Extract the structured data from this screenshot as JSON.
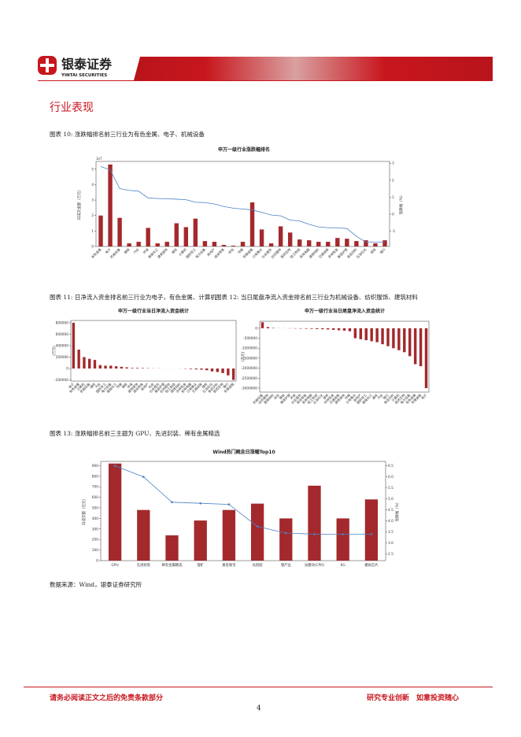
{
  "header": {
    "brand": "银泰证券",
    "brand_en": "YINTAI SECURITIES"
  },
  "section_title": "行业表现",
  "captions": [
    "图表 10: 涨跌幅排名前三行业为有色金属、电子、机械设备",
    "图表 11: 日净流入资金排名前三行业为电子，有色金属、计算机",
    "图表 12: 当日尾盘净流入资金排名前三行业为机械设备、纺织服饰、建筑材料",
    "图表 13: 涨跌幅排名前三主题为 GPU、先进封装、稀有金属精选"
  ],
  "source": "数据来源：Wind，银泰证券研究所",
  "footer": {
    "left": "请务必阅读正文之后的免责条款部分",
    "right": "研究专业创新　如意投资随心",
    "page": "4"
  },
  "chart_data": [
    {
      "type": "combo",
      "title": "申万一级行业涨跌幅排名",
      "ylabel": "日成交金额（万元）",
      "y2label": "涨跌幅（%）",
      "y_offset_label": "1e7",
      "categories": [
        "有色金属",
        "电子",
        "机械设备",
        "钢铁",
        "汽车",
        "环保",
        "基础化工",
        "建筑装饰",
        "通信",
        "计算机",
        "国防军工",
        "电力设备",
        "房地产",
        "商贸零售",
        "综合",
        "传媒",
        "非银金融",
        "公用事业",
        "社会服务",
        "纺织服饰",
        "医药生物",
        "轻工制造",
        "家用电器",
        "建筑材料",
        "交通运输",
        "农林牧渔",
        "美容护理",
        "食品饮料",
        "石油石化",
        "煤炭",
        "银行"
      ],
      "series": [
        {
          "name": "成交额",
          "type": "bar",
          "color": "#a3292c",
          "values": [
            2.0,
            5.3,
            1.85,
            0.2,
            0.3,
            1.2,
            0.2,
            0.3,
            1.5,
            1.25,
            1.8,
            0.35,
            0.3,
            0.1,
            0.05,
            0.3,
            2.85,
            1.1,
            0.2,
            1.3,
            0.9,
            0.45,
            0.4,
            0.3,
            0.3,
            0.55,
            0.5,
            0.35,
            0.4,
            0.2,
            0.4
          ]
        },
        {
          "name": "涨跌幅",
          "type": "line",
          "axis": "y2",
          "color": "#4a80c4",
          "values": [
            2.8,
            2.6,
            1.5,
            1.4,
            1.35,
            0.95,
            0.92,
            0.9,
            0.88,
            0.85,
            0.7,
            0.68,
            0.6,
            0.45,
            0.35,
            0.3,
            0.25,
            0.1,
            -0.05,
            -0.1,
            -0.35,
            -0.4,
            -0.6,
            -0.75,
            -0.8,
            -0.8,
            -0.85,
            -1.3,
            -1.65,
            -1.65,
            -1.65
          ]
        }
      ],
      "ylim": [
        0,
        5.5
      ],
      "yticks": [
        0,
        1,
        2,
        3,
        4,
        5
      ],
      "y2lim": [
        -1.9,
        3.1
      ],
      "y2ticks": [
        -1,
        0,
        1,
        2,
        3
      ]
    },
    {
      "type": "bar",
      "title": "申万一级行业当日净流入资金统计",
      "ylabel": "(万元)",
      "categories": [
        "电子",
        "有色金属",
        "计算机",
        "机械设备",
        "通信",
        "汽车",
        "国防军工",
        "电力设备",
        "基础化工",
        "传媒",
        "钢铁",
        "环保",
        "建筑装饰",
        "商贸零售",
        "房地产",
        "综合",
        "社会服务",
        "美容护理",
        "纺织服饰",
        "轻工制造",
        "建筑材料",
        "农林牧渔",
        "家用电器",
        "公用事业",
        "交通运输",
        "煤炭",
        "石油石化",
        "食品饮料",
        "医药生物",
        "银行",
        "非银金融"
      ],
      "series": [
        {
          "name": "净流入",
          "type": "bar",
          "color": "#a3292c",
          "values": [
            800000,
            330000,
            200000,
            170000,
            150000,
            60000,
            50000,
            50000,
            40000,
            30000,
            20000,
            10000,
            10000,
            8000,
            5000,
            3000,
            2000,
            1000,
            500,
            300,
            -2000,
            -5000,
            -10000,
            -15000,
            -20000,
            -30000,
            -50000,
            -60000,
            -80000,
            -120000,
            -200000
          ]
        }
      ],
      "ylim": [
        -220000,
        840000
      ],
      "yticks": [
        -200000,
        0,
        200000,
        400000,
        600000,
        800000
      ]
    },
    {
      "type": "bar",
      "title": "申万一级行业当日尾盘净流入资金统计",
      "ylabel": "(万元)",
      "categories": [
        "机械设备",
        "纺织服饰",
        "建筑材料",
        "综合",
        "钢铁",
        "美容护理",
        "环保",
        "社会服务",
        "商贸零售",
        "家用电器",
        "轻工制造",
        "石油石化",
        "煤炭",
        "农林牧渔",
        "交通运输",
        "建筑装饰",
        "传媒",
        "公用事业",
        "房地产",
        "国防军工",
        "基础化工",
        "通信",
        "汽车",
        "银行",
        "食品饮料",
        "计算机",
        "医药生物",
        "电力设备",
        "有色金属",
        "非银金融",
        "电子"
      ],
      "series": [
        {
          "name": "尾盘净流入",
          "type": "bar",
          "color": "#a3292c",
          "values": [
            300000,
            60000,
            20000,
            5000,
            -5000,
            -10000,
            -15000,
            -20000,
            -25000,
            -30000,
            -40000,
            -50000,
            -60000,
            -80000,
            -100000,
            -120000,
            -150000,
            -500000,
            -550000,
            -600000,
            -650000,
            -700000,
            -800000,
            -900000,
            -1000000,
            -1100000,
            -1200000,
            -1400000,
            -1800000,
            -1900000,
            -3000000
          ]
        }
      ],
      "ylim": [
        -3200000,
        350000
      ],
      "yticks": [
        -3000000,
        -2500000,
        -2000000,
        -1500000,
        -1000000,
        -500000,
        0
      ]
    },
    {
      "type": "combo",
      "title": "Wind热门概念日涨幅Top10",
      "ylabel": "日成交额（亿元）",
      "y2label": "涨跌幅（%）",
      "markers": true,
      "categories": [
        "GPU",
        "先进封装",
        "稀有金属精选",
        "锂矿",
        "黄金珠宝",
        "光刻胶",
        "锂产业",
        "光模块(CPO)",
        "6G",
        "模拟芯片"
      ],
      "series": [
        {
          "name": "成交额",
          "type": "bar",
          "color": "#a3292c",
          "values": [
            920,
            480,
            240,
            380,
            480,
            540,
            400,
            710,
            400,
            580
          ]
        },
        {
          "name": "涨跌幅",
          "type": "line",
          "axis": "y2",
          "color": "#4a80c4",
          "values": [
            6.5,
            6.0,
            4.85,
            4.8,
            4.75,
            3.75,
            3.45,
            3.4,
            3.4,
            3.4
          ]
        }
      ],
      "ylim": [
        0,
        940
      ],
      "yticks": [
        0,
        100,
        200,
        300,
        400,
        500,
        600,
        700,
        800,
        900
      ],
      "y2lim": [
        2.2,
        6.7
      ],
      "y2ticks": [
        2.5,
        {
          "value": 3,
          "label": "3.0"
        },
        3.5,
        {
          "value": 4,
          "label": "4.0"
        },
        4.5,
        {
          "value": 5,
          "label": "5.0"
        },
        5.5,
        {
          "value": 6,
          "label": "6.0"
        },
        6.5
      ]
    }
  ]
}
